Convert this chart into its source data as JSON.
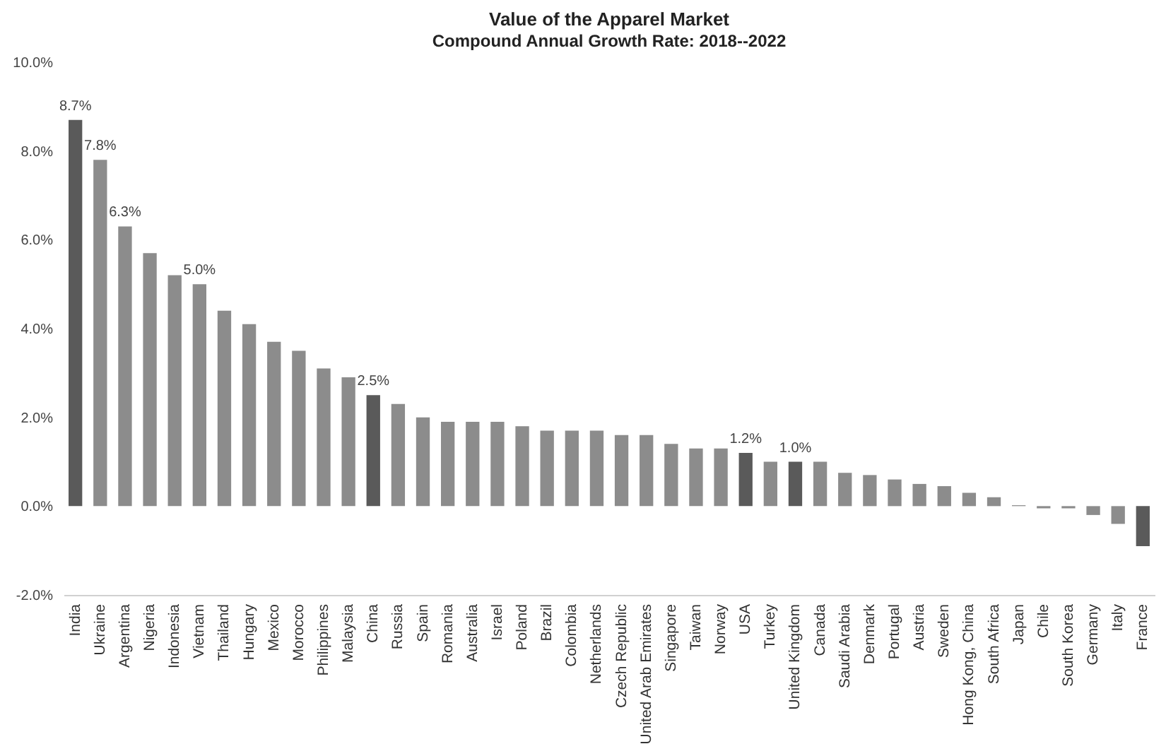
{
  "chart_data": {
    "type": "bar",
    "title": "Value of the Apparel Market",
    "subtitle": "Compound Annual Growth Rate: 2018--2022",
    "categories": [
      "India",
      "Ukraine",
      "Argentina",
      "Nigeria",
      "Indonesia",
      "Vietnam",
      "Thailand",
      "Hungary",
      "Mexico",
      "Morocco",
      "Philippines",
      "Malaysia",
      "China",
      "Russia",
      "Spain",
      "Romania",
      "Australia",
      "Israel",
      "Poland",
      "Brazil",
      "Colombia",
      "Netherlands",
      "Czech Republic",
      "United Arab Emirates",
      "Singapore",
      "Taiwan",
      "Norway",
      "USA",
      "Turkey",
      "United Kingdom",
      "Canada",
      "Saudi Arabia",
      "Denmark",
      "Portugal",
      "Austria",
      "Sweden",
      "Hong Kong, China",
      "South Africa",
      "Japan",
      "Chile",
      "South Korea",
      "Germany",
      "Italy",
      "France"
    ],
    "values": [
      8.7,
      7.8,
      6.3,
      5.7,
      5.2,
      5.0,
      4.4,
      4.1,
      3.7,
      3.5,
      3.1,
      2.9,
      2.5,
      2.3,
      2.0,
      1.9,
      1.9,
      1.9,
      1.8,
      1.7,
      1.7,
      1.7,
      1.6,
      1.6,
      1.4,
      1.3,
      1.3,
      1.2,
      1.0,
      1.0,
      1.0,
      0.75,
      0.7,
      0.6,
      0.5,
      0.45,
      0.3,
      0.2,
      0.02,
      -0.05,
      -0.05,
      -0.2,
      -0.4,
      -0.9
    ],
    "colors": [
      "#5a5a5a",
      "#8c8c8c",
      "#8c8c8c",
      "#8c8c8c",
      "#8c8c8c",
      "#8c8c8c",
      "#8c8c8c",
      "#8c8c8c",
      "#8c8c8c",
      "#8c8c8c",
      "#8c8c8c",
      "#8c8c8c",
      "#5a5a5a",
      "#8c8c8c",
      "#8c8c8c",
      "#8c8c8c",
      "#8c8c8c",
      "#8c8c8c",
      "#8c8c8c",
      "#8c8c8c",
      "#8c8c8c",
      "#8c8c8c",
      "#8c8c8c",
      "#8c8c8c",
      "#8c8c8c",
      "#8c8c8c",
      "#8c8c8c",
      "#5a5a5a",
      "#8c8c8c",
      "#5a5a5a",
      "#8c8c8c",
      "#8c8c8c",
      "#8c8c8c",
      "#8c8c8c",
      "#8c8c8c",
      "#8c8c8c",
      "#8c8c8c",
      "#8c8c8c",
      "#8c8c8c",
      "#8c8c8c",
      "#8c8c8c",
      "#8c8c8c",
      "#8c8c8c",
      "#5a5a5a"
    ],
    "value_labels": [
      "8.7%",
      "7.8%",
      "6.3%",
      null,
      null,
      "5.0%",
      null,
      null,
      null,
      null,
      null,
      null,
      "2.5%",
      null,
      null,
      null,
      null,
      null,
      null,
      null,
      null,
      null,
      null,
      null,
      null,
      null,
      null,
      "1.2%",
      null,
      "1.0%",
      null,
      null,
      null,
      null,
      null,
      null,
      null,
      null,
      null,
      null,
      null,
      null,
      null,
      null
    ],
    "ylim": [
      -2,
      10
    ],
    "yticks": [
      {
        "value": -2,
        "label": "-2.0%"
      },
      {
        "value": 0,
        "label": "0.0%"
      },
      {
        "value": 2,
        "label": "2.0%"
      },
      {
        "value": 4,
        "label": "4.0%"
      },
      {
        "value": 6,
        "label": "6.0%"
      },
      {
        "value": 8,
        "label": "8.0%"
      },
      {
        "value": 10,
        "label": "10.0%"
      }
    ],
    "grid": false
  }
}
